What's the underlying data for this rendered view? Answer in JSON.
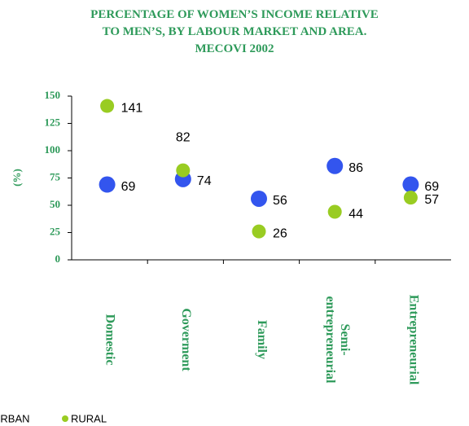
{
  "chart_data": {
    "type": "dot",
    "title": [
      "PERCENTAGE OF WOMEN’S INCOME RELATIVE",
      "TO MEN’S, BY LABOUR MARKET AND AREA.",
      "MECOVI 2002"
    ],
    "y_label": "(%)",
    "categories": [
      "Domestic",
      "Goverment",
      "Family",
      "Semi-entrepreneurial",
      "Entrepreneurial"
    ],
    "series": [
      {
        "name": "URBAN",
        "color": "#3355ee",
        "values": [
          69,
          74,
          56,
          86,
          69
        ]
      },
      {
        "name": "RURAL",
        "color": "#99cc22",
        "values": [
          141,
          82,
          26,
          44,
          57
        ]
      }
    ],
    "ylim": [
      0,
      150
    ],
    "yticks": [
      0,
      25,
      50,
      75,
      100,
      125,
      150
    ]
  }
}
